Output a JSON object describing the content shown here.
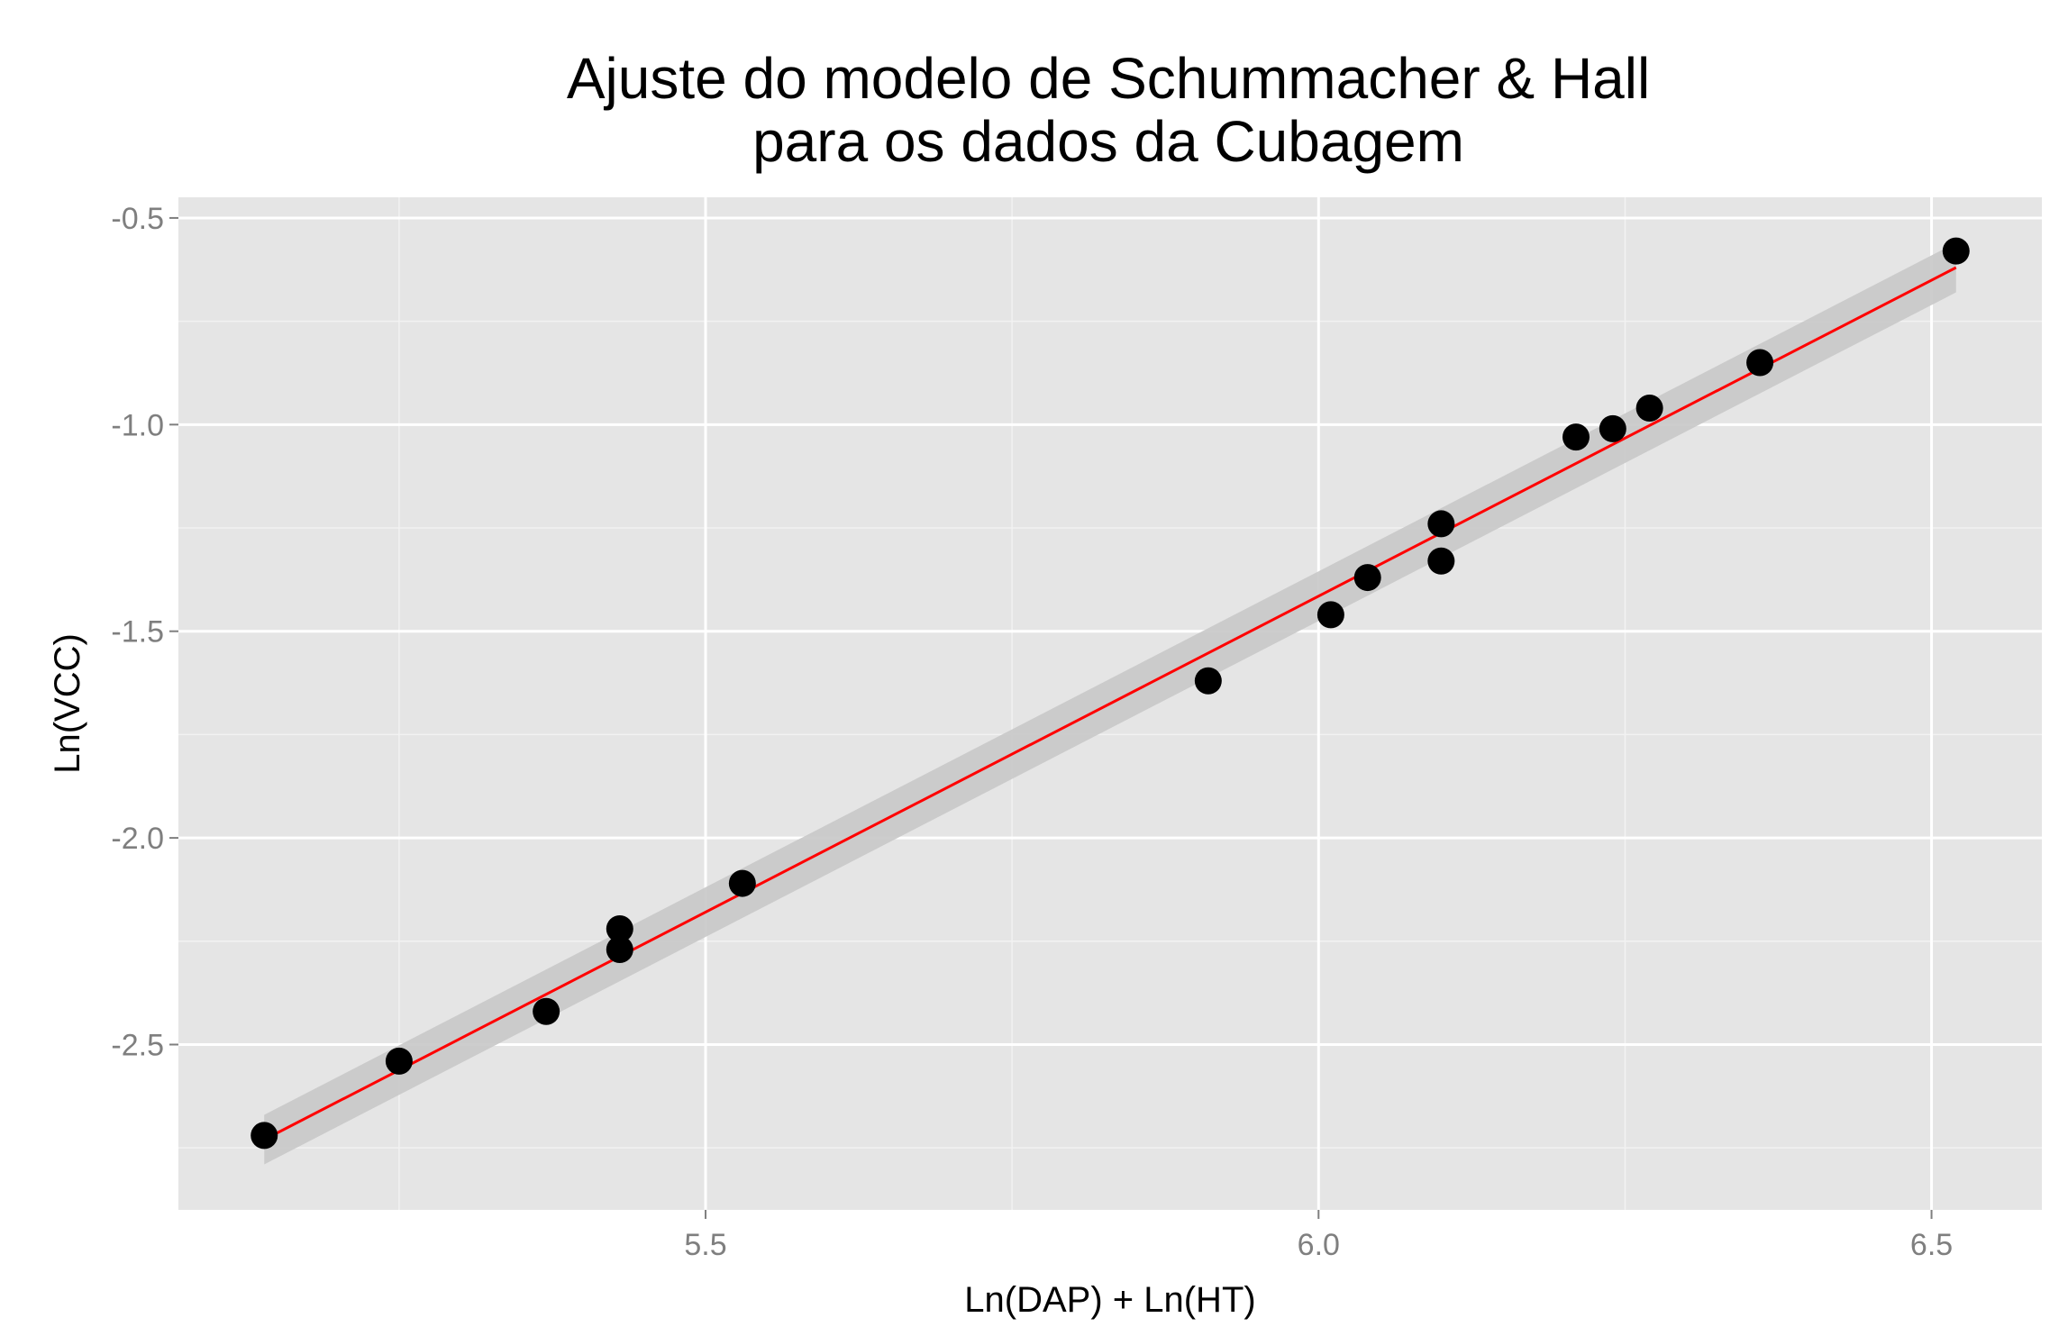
{
  "chart_data": {
    "type": "scatter",
    "title_lines": [
      "Ajuste do modelo de Schummacher & Hall",
      "para os dados da Cubagem"
    ],
    "xlabel": "Ln(DAP) + Ln(HT)",
    "ylabel": "Ln(VCC)",
    "xlim": [
      5.07,
      6.59
    ],
    "ylim": [
      -2.9,
      -0.45
    ],
    "x_ticks": [
      5.5,
      6.0,
      6.5
    ],
    "x_tick_labels": [
      "5.5",
      "6.0",
      "6.5"
    ],
    "y_ticks": [
      -0.5,
      -1.0,
      -1.5,
      -2.0,
      -2.5
    ],
    "y_tick_labels": [
      "-0.5",
      "-1.0",
      "-1.5",
      "-2.0",
      "-2.5"
    ],
    "grid": true,
    "points": {
      "x": [
        5.14,
        5.25,
        5.37,
        5.43,
        5.43,
        5.53,
        5.91,
        6.01,
        6.04,
        6.1,
        6.1,
        6.21,
        6.24,
        6.27,
        6.36,
        6.52
      ],
      "y": [
        -2.72,
        -2.54,
        -2.42,
        -2.22,
        -2.27,
        -2.11,
        -1.62,
        -1.46,
        -1.37,
        -1.24,
        -1.33,
        -1.03,
        -1.01,
        -0.96,
        -0.85,
        -0.58
      ],
      "color": "#000000"
    },
    "fit_line": {
      "x": [
        5.14,
        6.52
      ],
      "y": [
        -2.73,
        -0.62
      ],
      "color": "#ff0000",
      "ci_halfwidth": 0.06,
      "ci_color": "#c8c8c8"
    },
    "colors": {
      "panel_background": "#e5e5e5",
      "grid_major": "#ffffff",
      "grid_minor": "#f2f2f2"
    }
  }
}
